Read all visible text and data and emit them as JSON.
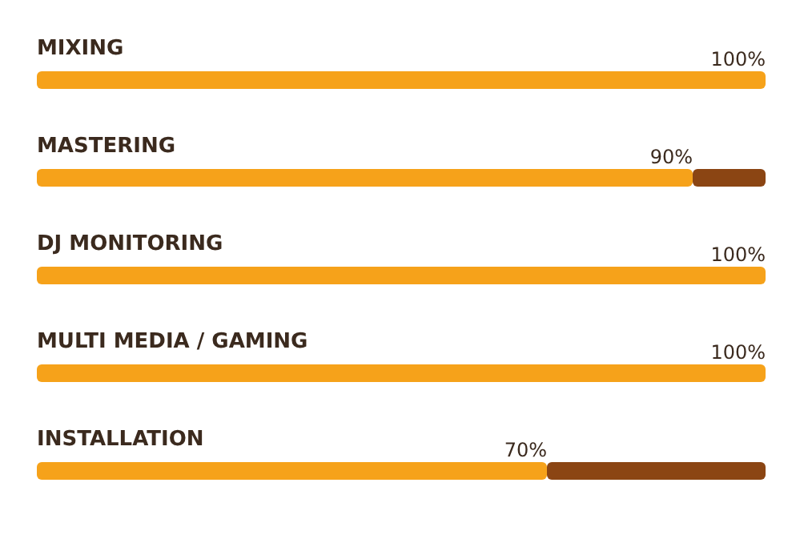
{
  "chart_data": {
    "type": "bar",
    "orientation": "horizontal",
    "stacked": true,
    "categories": [
      "MIXING",
      "MASTERING",
      "DJ MONITORING",
      "MULTI MEDIA / GAMING",
      "INSTALLATION"
    ],
    "xlim": [
      0,
      100
    ],
    "series": [
      {
        "color": "#f6a21a",
        "values": [
          100,
          90,
          100,
          100,
          70
        ],
        "value_labels": [
          "100%",
          "90%",
          "100%",
          "100%",
          "70%"
        ]
      },
      {
        "color": "#8b4513",
        "values": [
          0,
          10,
          0,
          0,
          30
        ]
      }
    ]
  }
}
